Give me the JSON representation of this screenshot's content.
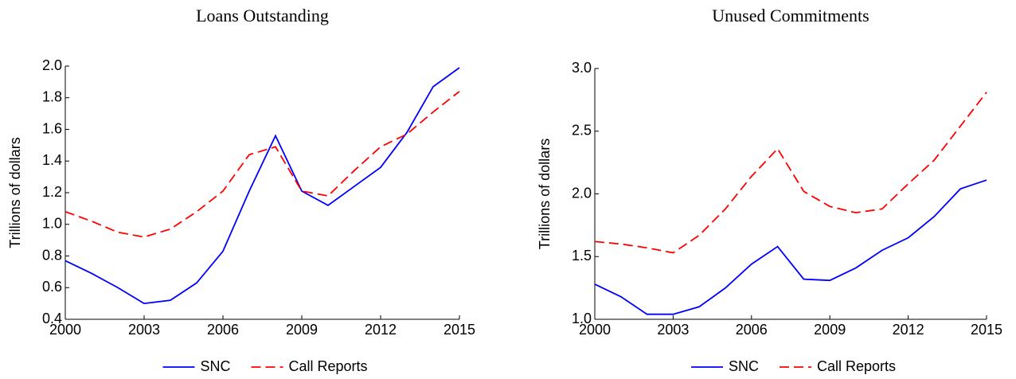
{
  "chart_data": [
    {
      "type": "line",
      "title": "Loans Outstanding",
      "ylabel": "Trillions of dollars",
      "x": [
        2000,
        2001,
        2002,
        2003,
        2004,
        2005,
        2006,
        2007,
        2008,
        2009,
        2010,
        2011,
        2012,
        2013,
        2014,
        2015
      ],
      "series": [
        {
          "name": "SNC",
          "color": "#0000ff",
          "linestyle": "solid",
          "values": [
            0.77,
            0.69,
            0.6,
            0.5,
            0.52,
            0.63,
            0.83,
            1.21,
            1.56,
            1.21,
            1.12,
            1.24,
            1.36,
            1.58,
            1.87,
            1.99
          ]
        },
        {
          "name": "Call Reports",
          "color": "#ff0000",
          "linestyle": "dashed",
          "values": [
            1.08,
            1.02,
            0.95,
            0.92,
            0.97,
            1.08,
            1.21,
            1.44,
            1.49,
            1.21,
            1.18,
            1.34,
            1.49,
            1.57,
            1.71,
            1.84
          ]
        }
      ],
      "xlim": [
        2000,
        2015
      ],
      "xticks": [
        2000,
        2003,
        2006,
        2009,
        2012,
        2015
      ],
      "ylim": [
        0.4,
        2.0
      ],
      "yticks": [
        0.4,
        0.6,
        0.8,
        {
          "value": 1,
          "label": "1.0"
        },
        1.2,
        1.4,
        1.6,
        1.8,
        {
          "value": 2,
          "label": "2.0"
        }
      ],
      "legend": "bottom"
    },
    {
      "type": "line",
      "title": "Unused Commitments",
      "ylabel": "Trillions of dollars",
      "x": [
        2000,
        2001,
        2002,
        2003,
        2004,
        2005,
        2006,
        2007,
        2008,
        2009,
        2010,
        2011,
        2012,
        2013,
        2014,
        2015
      ],
      "series": [
        {
          "name": "SNC",
          "color": "#0000ff",
          "linestyle": "solid",
          "values": [
            1.28,
            1.18,
            1.04,
            1.04,
            1.1,
            1.25,
            1.44,
            1.58,
            1.32,
            1.31,
            1.41,
            1.55,
            1.65,
            1.82,
            2.04,
            2.11
          ]
        },
        {
          "name": "Call Reports",
          "color": "#ff0000",
          "linestyle": "dashed",
          "values": [
            1.62,
            1.6,
            1.57,
            1.53,
            1.67,
            1.88,
            2.14,
            2.36,
            2.02,
            1.9,
            1.85,
            1.88,
            2.08,
            2.27,
            2.54,
            2.81
          ]
        }
      ],
      "xlim": [
        2000,
        2015
      ],
      "xticks": [
        2000,
        2003,
        2006,
        2009,
        2012,
        2015
      ],
      "ylim": [
        1.0,
        3.0
      ],
      "yticks": [
        {
          "value": 1,
          "label": "1.0"
        },
        1.5,
        {
          "value": 2,
          "label": "2.0"
        },
        2.5,
        {
          "value": 3,
          "label": "3.0"
        }
      ],
      "legend": "bottom"
    }
  ]
}
